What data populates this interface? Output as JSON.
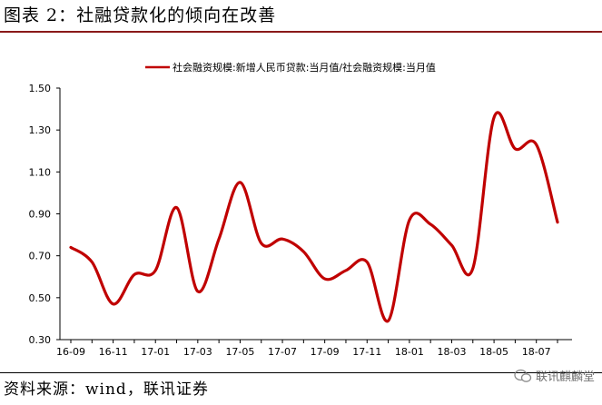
{
  "header": {
    "title": "图表 2：社融贷款化的倾向在改善"
  },
  "footer": {
    "source": "资料来源：wind，联讯证券",
    "watermark": "联讯麒麟堂",
    "watermark_icon": "wechat-icon"
  },
  "colors": {
    "series": "#c00000",
    "title_rule": "#8a1a1a",
    "axis": "#000000"
  },
  "chart_data": {
    "type": "line",
    "title": "",
    "xlabel": "",
    "ylabel": "",
    "legend_position": "top",
    "grid": false,
    "ylim": [
      0.3,
      1.5
    ],
    "yticks": [
      "0.30",
      "0.50",
      "0.70",
      "0.90",
      "1.10",
      "1.30",
      "1.50"
    ],
    "categories": [
      "16-09",
      "16-10",
      "16-11",
      "16-12",
      "17-01",
      "17-02",
      "17-03",
      "17-04",
      "17-05",
      "17-06",
      "17-07",
      "17-08",
      "17-09",
      "17-10",
      "17-11",
      "17-12",
      "18-01",
      "18-02",
      "18-03",
      "18-04",
      "18-05",
      "18-06",
      "18-07",
      "18-08"
    ],
    "xtick_labels": [
      "16-09",
      "16-11",
      "17-01",
      "17-03",
      "17-05",
      "17-07",
      "17-09",
      "17-11",
      "18-01",
      "18-03",
      "18-05",
      "18-07"
    ],
    "series": [
      {
        "name": "社会融资规模:新增人民币贷款:当月值/社会融资规模:当月值",
        "values": [
          0.74,
          0.67,
          0.47,
          0.61,
          0.63,
          0.93,
          0.53,
          0.78,
          1.05,
          0.76,
          0.78,
          0.72,
          0.59,
          0.63,
          0.67,
          0.39,
          0.87,
          0.85,
          0.75,
          0.64,
          1.36,
          1.21,
          1.23,
          0.86
        ]
      }
    ]
  }
}
